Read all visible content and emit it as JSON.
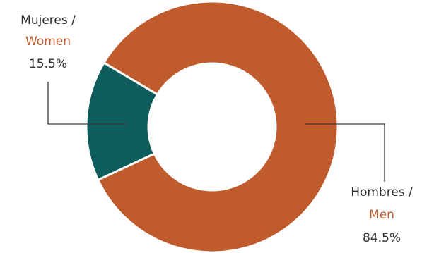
{
  "chart_data": {
    "type": "pie",
    "style": "donut",
    "title": "",
    "slices": [
      {
        "name_es": "Mujeres /",
        "name_en": "Women",
        "value": 15.5,
        "value_label": "15.5%",
        "color": "#0e5c5c"
      },
      {
        "name_es": "Hombres /",
        "name_en": "Men",
        "value": 84.5,
        "value_label": "84.5%",
        "color": "#bf5b2d"
      }
    ],
    "label_colors": {
      "primary": "#2d2d2d",
      "accent": "#bf5b2d"
    },
    "leader_line_color": "#3a3a3a"
  }
}
